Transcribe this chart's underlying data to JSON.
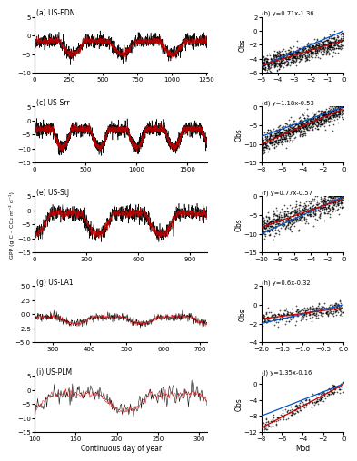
{
  "panels": [
    {
      "label_ts": "(a) US-EDN",
      "label_sc": "(b) y=0.71x-1.36",
      "ts_xlim": [
        0,
        1260
      ],
      "ts_ylim": [
        -10,
        5
      ],
      "ts_yticks": [
        -10,
        -5,
        0,
        5
      ],
      "ts_xticks": [
        0,
        250,
        500,
        750,
        1000,
        1250
      ],
      "sc_xlim": [
        -5,
        0
      ],
      "sc_ylim": [
        -6,
        2
      ],
      "sc_xticks": [
        -5,
        -4,
        -3,
        -2,
        -1,
        0
      ],
      "sc_yticks": [
        -6,
        -4,
        -2,
        0,
        2
      ],
      "reg_slope": 0.71,
      "reg_intercept": -1.36,
      "n_points": 1260,
      "ts_base": -1.5,
      "ts_amp": 3.5,
      "ts_period": 365,
      "ts_noise": 0.9,
      "ts_phase": 1.57,
      "sc_noise_scale": 0.6,
      "sc_n": 800
    },
    {
      "label_ts": "(c) US-Srr",
      "label_sc": "(d) y=1.18x-0.53",
      "ts_xlim": [
        0,
        1700
      ],
      "ts_ylim": [
        -15,
        5
      ],
      "ts_yticks": [
        -15,
        -10,
        -5,
        0,
        5
      ],
      "ts_xticks": [
        0,
        500,
        1000,
        1500
      ],
      "sc_xlim": [
        -8,
        0
      ],
      "sc_ylim": [
        -15,
        0
      ],
      "sc_xticks": [
        -8,
        -6,
        -4,
        -2,
        0
      ],
      "sc_yticks": [
        -15,
        -10,
        -5,
        0
      ],
      "reg_slope": 1.18,
      "reg_intercept": -0.53,
      "n_points": 1700,
      "ts_base": -3.0,
      "ts_amp": 6.5,
      "ts_period": 365,
      "ts_noise": 1.2,
      "ts_phase": 1.57,
      "sc_noise_scale": 1.2,
      "sc_n": 900
    },
    {
      "label_ts": "(e) US-StJ",
      "label_sc": "(f) y=0.77x-0.57",
      "ts_xlim": [
        0,
        1000
      ],
      "ts_ylim": [
        -15,
        5
      ],
      "ts_yticks": [
        -15,
        -10,
        -5,
        0,
        5
      ],
      "ts_xticks": [
        0,
        300,
        600,
        900
      ],
      "sc_xlim": [
        -10,
        0
      ],
      "sc_ylim": [
        -15,
        0
      ],
      "sc_xticks": [
        -10,
        -8,
        -6,
        -4,
        -2,
        0
      ],
      "sc_yticks": [
        -15,
        -10,
        -5,
        0
      ],
      "reg_slope": 0.77,
      "reg_intercept": -0.57,
      "n_points": 1000,
      "ts_base": -1.0,
      "ts_amp": 7.5,
      "ts_period": 365,
      "ts_noise": 1.5,
      "ts_phase": 0.0,
      "sc_noise_scale": 1.5,
      "sc_n": 700
    },
    {
      "label_ts": "(g) US-LA1",
      "label_sc": "(h) y=0.6x-0.32",
      "ts_xlim": [
        250,
        720
      ],
      "ts_ylim": [
        -5,
        5
      ],
      "ts_yticks": [
        -5.0,
        -2.5,
        0.0,
        2.5,
        5.0
      ],
      "ts_xticks": [
        300,
        400,
        500,
        600,
        700
      ],
      "sc_xlim": [
        -2.0,
        0.0
      ],
      "sc_ylim": [
        -4,
        2
      ],
      "sc_xticks": [
        -2.0,
        -1.5,
        -1.0,
        -0.5,
        0.0
      ],
      "sc_yticks": [
        -4,
        -2,
        0,
        2
      ],
      "reg_slope": 0.6,
      "reg_intercept": -0.32,
      "n_points": 470,
      "ts_base": -0.5,
      "ts_amp": 1.2,
      "ts_period": 180,
      "ts_noise": 0.4,
      "ts_phase": 0.0,
      "sc_noise_scale": 0.35,
      "sc_n": 350
    },
    {
      "label_ts": "(i) US-PLM",
      "label_sc": "(j) y=1.35x-0.16",
      "ts_xlim": [
        100,
        310
      ],
      "ts_ylim": [
        -15,
        5
      ],
      "ts_yticks": [
        -15,
        -10,
        -5,
        0,
        5
      ],
      "ts_xticks": [
        100,
        150,
        200,
        250,
        300
      ],
      "sc_xlim": [
        -8,
        0
      ],
      "sc_ylim": [
        -12,
        2
      ],
      "sc_xticks": [
        -8,
        -6,
        -4,
        -2,
        0
      ],
      "sc_yticks": [
        -12,
        -8,
        -4,
        0
      ],
      "reg_slope": 1.35,
      "reg_intercept": -0.16,
      "n_points": 210,
      "ts_base": -1.5,
      "ts_amp": 6.0,
      "ts_period": 120,
      "ts_noise": 1.5,
      "ts_phase": 1.57,
      "sc_noise_scale": 0.8,
      "sc_n": 200
    }
  ],
  "ts_line_color_obs": "#000000",
  "ts_line_color_mod": "#cc0000",
  "scatter_color": "#000000",
  "reg_line_color": "#cc0000",
  "diag_line_color": "#0055cc",
  "ts_linewidth": 0.4,
  "sc_markersize": 1.5,
  "reg_linewidth": 0.9,
  "ylabel": "GPP (g C – CO₂ m⁻² d⁻¹)",
  "xlabel_ts": "Continuous day of year",
  "xlabel_sc": "Mod",
  "obs_label": "Obs",
  "background_color": "#ffffff",
  "tick_fontsize": 5,
  "label_fontsize": 5.5,
  "ylabel_fontsize": 4.5,
  "title_fontsize": 5.5
}
